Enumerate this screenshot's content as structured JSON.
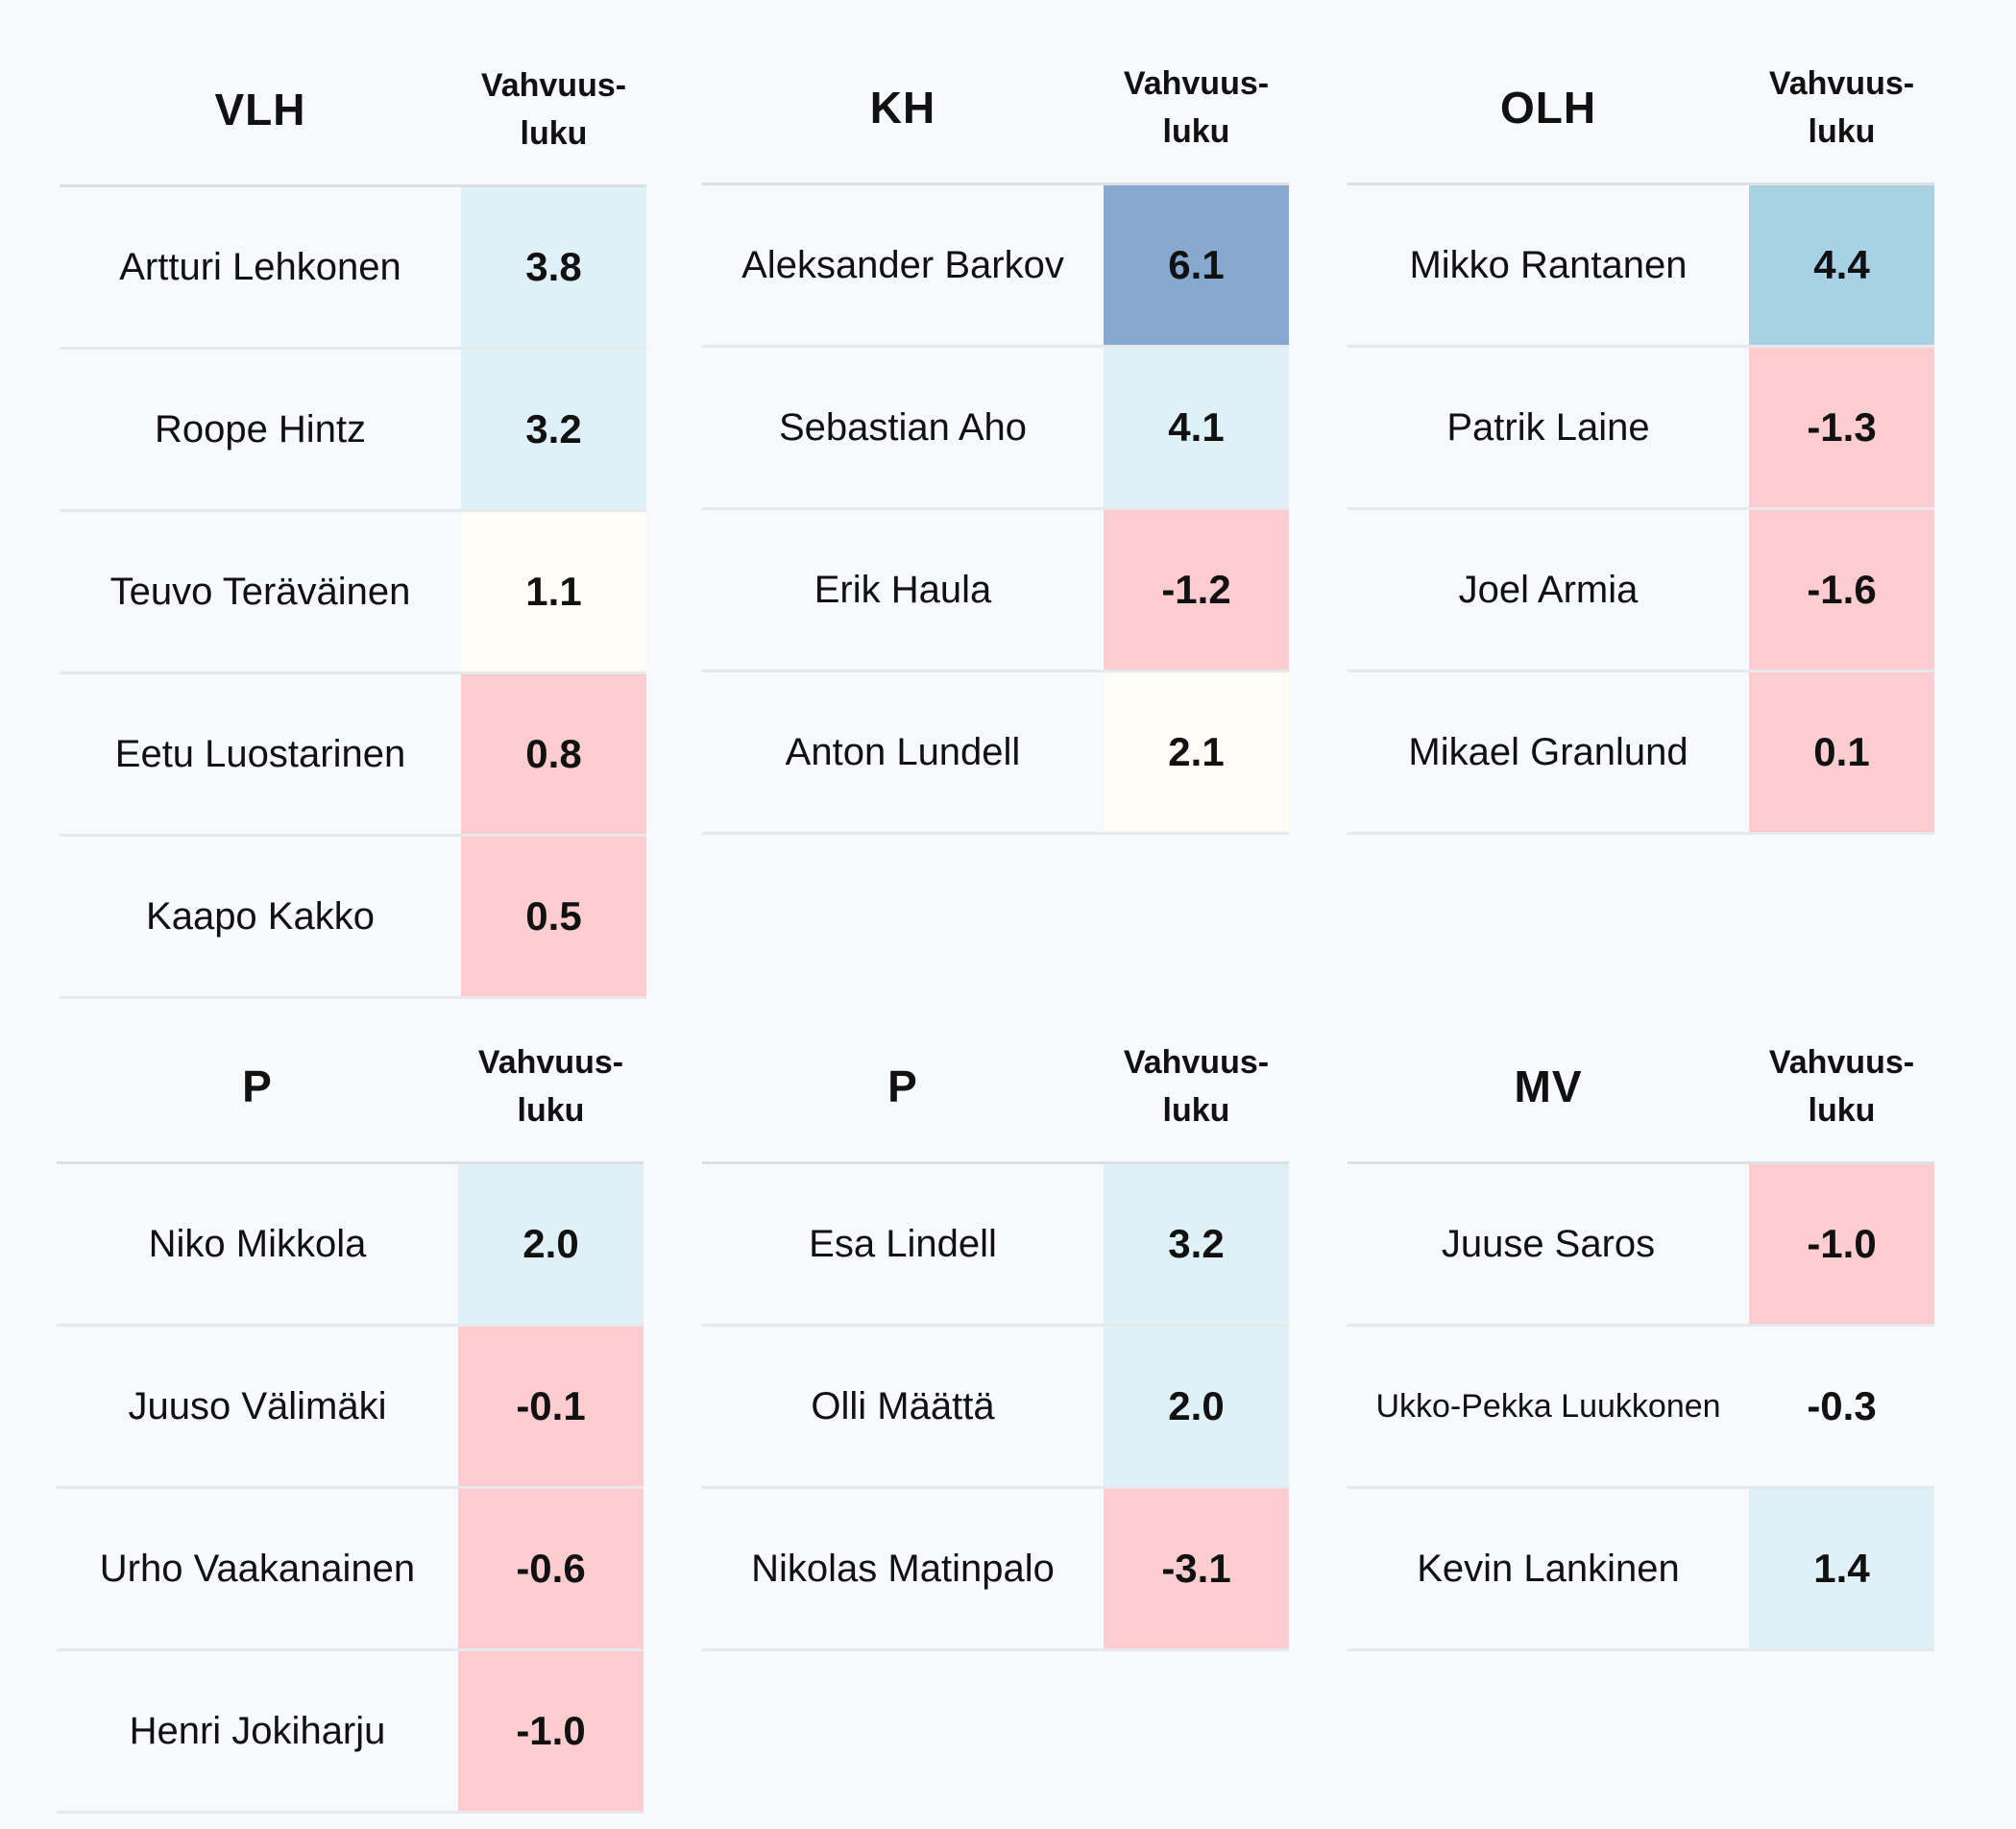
{
  "value_header": [
    "Vahvuus-",
    "luku"
  ],
  "colors": {
    "background": "#f7f9fc",
    "strong_positive": "#87a9cf",
    "positive": "#a8d1e6",
    "mild_positive": "#dff0f7",
    "neutral": "#fffcf5",
    "negative": "#fcccce"
  },
  "tables": [
    {
      "position": "VLH",
      "players": [
        {
          "name": "Artturi Lehkonen",
          "value": "3.8",
          "color": "#dff0f7"
        },
        {
          "name": "Roope Hintz",
          "value": "3.2",
          "color": "#dff0f7"
        },
        {
          "name": "Teuvo Teräväinen",
          "value": "1.1",
          "color": "#fffcf5"
        },
        {
          "name": "Eetu Luostarinen",
          "value": "0.8",
          "color": "#fcccce"
        },
        {
          "name": "Kaapo Kakko",
          "value": "0.5",
          "color": "#fcccce"
        }
      ]
    },
    {
      "position": "KH",
      "players": [
        {
          "name": "Aleksander Barkov",
          "value": "6.1",
          "color": "#87a9cf"
        },
        {
          "name": "Sebastian Aho",
          "value": "4.1",
          "color": "#dff0f7"
        },
        {
          "name": "Erik Haula",
          "value": "-1.2",
          "color": "#fcccce"
        },
        {
          "name": "Anton Lundell",
          "value": "2.1",
          "color": "#fffcf5"
        }
      ]
    },
    {
      "position": "OLH",
      "players": [
        {
          "name": "Mikko Rantanen",
          "value": "4.4",
          "color": "#a8d1e6"
        },
        {
          "name": "Patrik Laine",
          "value": "-1.3",
          "color": "#fcccce"
        },
        {
          "name": "Joel Armia",
          "value": "-1.6",
          "color": "#fcccce"
        },
        {
          "name": "Mikael Granlund",
          "value": "0.1",
          "color": "#fcccce"
        }
      ]
    },
    {
      "position": "P",
      "players": [
        {
          "name": "Niko Mikkola",
          "value": "2.0",
          "color": "#dff0f7"
        },
        {
          "name": "Juuso Välimäki",
          "value": "-0.1",
          "color": "#fcccce"
        },
        {
          "name": "Urho Vaakanainen",
          "value": "-0.6",
          "color": "#fcccce"
        },
        {
          "name": "Henri Jokiharju",
          "value": "-1.0",
          "color": "#fcccce"
        }
      ]
    },
    {
      "position": "P",
      "players": [
        {
          "name": "Esa Lindell",
          "value": "3.2",
          "color": "#dff0f7"
        },
        {
          "name": "Olli Määttä",
          "value": "2.0",
          "color": "#dff0f7"
        },
        {
          "name": "Nikolas Matinpalo",
          "value": "-3.1",
          "color": "#fcccce"
        }
      ]
    },
    {
      "position": "MV",
      "players": [
        {
          "name": "Juuse Saros",
          "value": "-1.0",
          "color": "#fcccce"
        },
        {
          "name": "Ukko-Pekka Luukkonen",
          "value": "-0.3",
          "color": ""
        },
        {
          "name": "Kevin Lankinen",
          "value": "1.4",
          "color": "#dff0f7"
        }
      ]
    }
  ]
}
